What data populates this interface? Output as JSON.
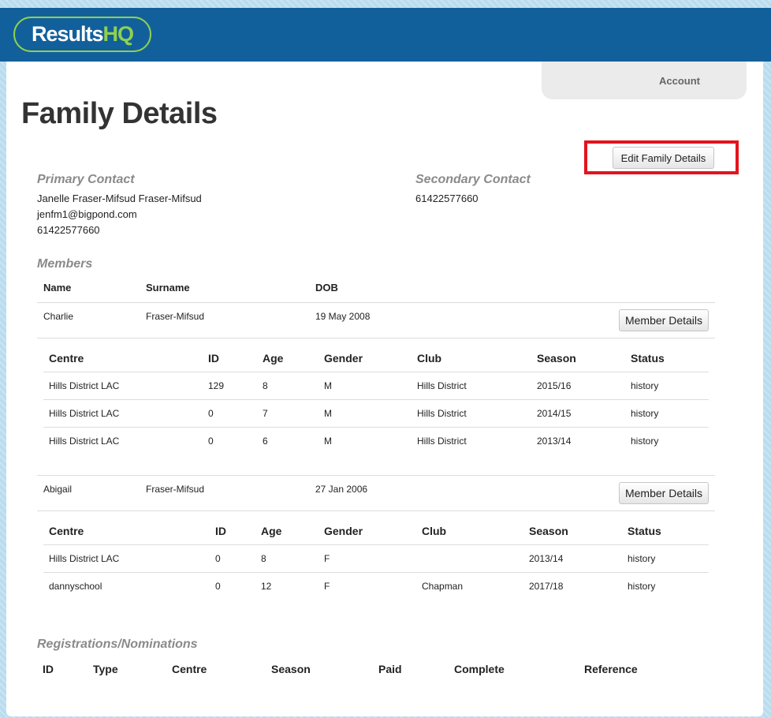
{
  "header": {
    "logo_part1": "Results",
    "logo_part2": "HQ",
    "account_label": "Account"
  },
  "page": {
    "title": "Family Details",
    "edit_button": "Edit Family Details"
  },
  "primary_contact": {
    "heading": "Primary Contact",
    "name": "Janelle Fraser-Mifsud Fraser-Mifsud",
    "email": "jenfm1@bigpond.com",
    "phone": "61422577660"
  },
  "secondary_contact": {
    "heading": "Secondary Contact",
    "phone": "61422577660"
  },
  "members": {
    "heading": "Members",
    "columns": [
      "Name",
      "Surname",
      "DOB"
    ],
    "details_button": "Member Details",
    "sub_columns": [
      "Centre",
      "ID",
      "Age",
      "Gender",
      "Club",
      "Season",
      "Status"
    ],
    "list": [
      {
        "name": "Charlie",
        "surname": "Fraser-Mifsud",
        "dob": "19 May 2008",
        "history": [
          [
            "Hills District LAC",
            "129",
            "8",
            "M",
            "Hills District",
            "2015/16",
            "history"
          ],
          [
            "Hills District LAC",
            "0",
            "7",
            "M",
            "Hills District",
            "2014/15",
            "history"
          ],
          [
            "Hills District LAC",
            "0",
            "6",
            "M",
            "Hills District",
            "2013/14",
            "history"
          ]
        ]
      },
      {
        "name": "Abigail",
        "surname": "Fraser-Mifsud",
        "dob": "27 Jan 2006",
        "history": [
          [
            "Hills District LAC",
            "0",
            "8",
            "F",
            "",
            "2013/14",
            "history"
          ],
          [
            "dannyschool",
            "0",
            "12",
            "F",
            "Chapman",
            "2017/18",
            "history"
          ]
        ]
      }
    ]
  },
  "registrations": {
    "heading": "Registrations/Nominations",
    "columns": [
      "ID",
      "Type",
      "Centre",
      "Season",
      "Paid",
      "Complete",
      "Reference"
    ]
  },
  "colors": {
    "header_bg": "#12609b",
    "logo_green": "#8fd14f",
    "highlight_red": "#e3141c"
  }
}
